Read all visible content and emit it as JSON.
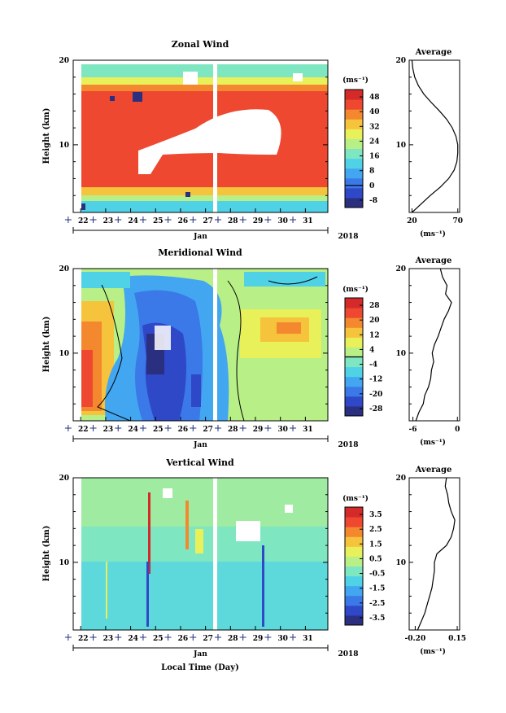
{
  "figure": {
    "xlabel": "Local Time (Day)"
  },
  "colors": {
    "palette": [
      "#2b2f80",
      "#2e48c8",
      "#3b78e8",
      "#42a6f0",
      "#4fd2e6",
      "#7fe6c2",
      "#b8ef86",
      "#e8f05a",
      "#f6c33c",
      "#f4882e",
      "#ee4830",
      "#d42a2a"
    ]
  },
  "chart_data": [
    {
      "type": "heatmap",
      "title": "Zonal Wind",
      "ylabel": "Height (km)",
      "ylim": [
        2,
        20
      ],
      "yticks": [
        10,
        20
      ],
      "xlim": [
        21.7,
        31.9
      ],
      "xticks": [
        "22",
        "23",
        "24",
        "25",
        "26",
        "27",
        "28",
        "29",
        "30",
        "31"
      ],
      "month_label": "Jan",
      "year_label": "2018",
      "colorbar_unit": "(ms⁻¹)",
      "colorbar_ticks": [
        "-8",
        "0",
        "8",
        "16",
        "24",
        "32",
        "40",
        "48"
      ],
      "colorbar_range": [
        -12,
        52
      ],
      "profile": {
        "title": "Average",
        "xlabel": "(ms⁻¹)",
        "xticks": [
          "20",
          "70"
        ],
        "xlim": [
          17,
          72
        ],
        "heights": [
          2,
          3,
          4,
          5,
          6,
          7,
          8,
          9,
          10,
          11,
          12,
          13,
          14,
          15,
          16,
          17,
          18,
          19,
          20
        ],
        "values": [
          20,
          30,
          40,
          51,
          60,
          66,
          69,
          70,
          70,
          68,
          64,
          58,
          50,
          41,
          33,
          27,
          23,
          21,
          20
        ]
      }
    },
    {
      "type": "heatmap",
      "title": "Meridional Wind",
      "ylabel": "Height (km)",
      "ylim": [
        2,
        20
      ],
      "yticks": [
        10,
        20
      ],
      "xlim": [
        21.7,
        31.9
      ],
      "xticks": [
        "22",
        "23",
        "24",
        "25",
        "26",
        "27",
        "28",
        "29",
        "30",
        "31"
      ],
      "month_label": "Jan",
      "year_label": "2018",
      "colorbar_unit": "(ms⁻¹)",
      "colorbar_ticks": [
        "-28",
        "-20",
        "-12",
        "-4",
        "4",
        "12",
        "20",
        "28"
      ],
      "colorbar_range": [
        -32,
        32
      ],
      "profile": {
        "title": "Average",
        "xlabel": "(ms⁻¹)",
        "xticks": [
          "-6",
          "0"
        ],
        "xlim": [
          -6.5,
          0.3
        ],
        "heights": [
          2,
          3,
          4,
          5,
          6,
          7,
          8,
          9,
          10,
          11,
          12,
          13,
          14,
          15,
          16,
          17,
          18,
          19,
          20
        ],
        "values": [
          -5.6,
          -5.2,
          -4.6,
          -4.4,
          -3.9,
          -3.6,
          -3.5,
          -3.2,
          -3.4,
          -3.1,
          -2.6,
          -2.2,
          -1.8,
          -1.2,
          -0.8,
          -1.6,
          -1.4,
          -2.0,
          -2.3
        ]
      }
    },
    {
      "type": "heatmap",
      "title": "Vertical Wind",
      "ylabel": "Height (km)",
      "ylim": [
        2,
        20
      ],
      "yticks": [
        10,
        20
      ],
      "xlim": [
        21.7,
        31.9
      ],
      "xticks": [
        "22",
        "23",
        "24",
        "25",
        "26",
        "27",
        "28",
        "29",
        "30",
        "31"
      ],
      "month_label": "Jan",
      "year_label": "2018",
      "colorbar_unit": "(ms⁻¹)",
      "colorbar_ticks": [
        "-3.5",
        "-2.5",
        "-1.5",
        "-0.5",
        "0.5",
        "1.5",
        "2.5",
        "3.5"
      ],
      "colorbar_range": [
        -4,
        4
      ],
      "profile": {
        "title": "Average",
        "xlabel": "(ms⁻¹)",
        "xticks": [
          "-0.20",
          "0.15"
        ],
        "xlim": [
          -0.25,
          0.17
        ],
        "heights": [
          2,
          3,
          4,
          5,
          6,
          7,
          8,
          9,
          10,
          11,
          12,
          13,
          14,
          15,
          16,
          17,
          18,
          19,
          20
        ],
        "values": [
          -0.18,
          -0.15,
          -0.12,
          -0.1,
          -0.08,
          -0.06,
          -0.05,
          -0.04,
          -0.04,
          -0.02,
          0.06,
          0.1,
          0.12,
          0.13,
          0.1,
          0.08,
          0.07,
          0.05,
          0.06
        ]
      }
    }
  ]
}
